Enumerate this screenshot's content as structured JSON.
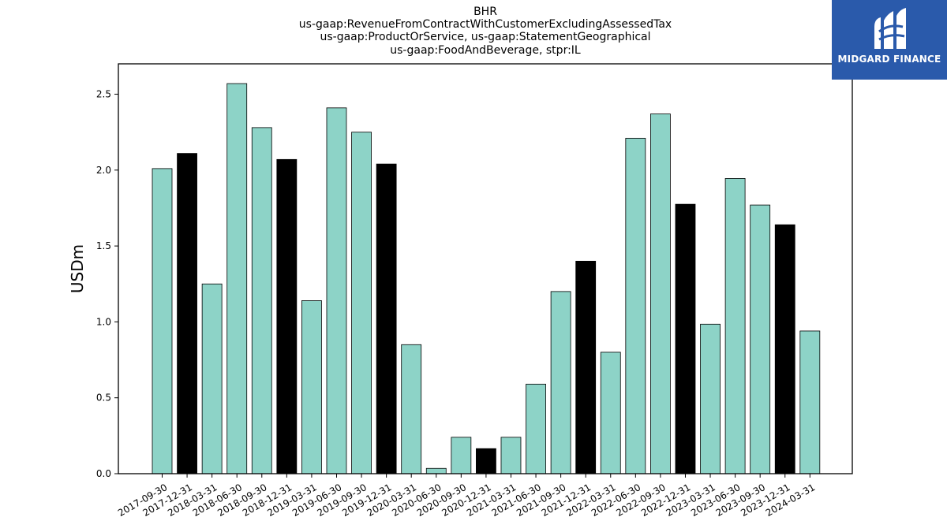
{
  "title_lines": [
    "BHR",
    "us-gaap:RevenueFromContractWithCustomerExcludingAssessedTax",
    "us-gaap:ProductOrService, us-gaap:StatementGeographical",
    "us-gaap:FoodAndBeverage, stpr:IL"
  ],
  "logo": {
    "text": "MIDGARD FINANCE",
    "icon": "midgard-logo-icon",
    "bg_color": "#2a5aab"
  },
  "chart_data": {
    "type": "bar",
    "ylabel": "USDm",
    "xlabel": "",
    "ylim": [
      0,
      2.7
    ],
    "yticks": [
      0.0,
      0.5,
      1.0,
      1.5,
      2.0,
      2.5
    ],
    "ytick_labels": [
      "0.0",
      "0.5",
      "1.0",
      "1.5",
      "2.0",
      "2.5"
    ],
    "grid": false,
    "colors": {
      "quarter": "#8dd3c7",
      "year_end": "#000000",
      "edge": "#000000"
    },
    "categories": [
      "2017-09-30",
      "2017-12-31",
      "2018-03-31",
      "2018-06-30",
      "2018-09-30",
      "2018-12-31",
      "2019-03-31",
      "2019-06-30",
      "2019-09-30",
      "2019-12-31",
      "2020-03-31",
      "2020-06-30",
      "2020-09-30",
      "2020-12-31",
      "2021-03-31",
      "2021-06-30",
      "2021-09-30",
      "2021-12-31",
      "2022-03-31",
      "2022-06-30",
      "2022-09-30",
      "2022-12-31",
      "2023-03-31",
      "2023-06-30",
      "2023-09-30",
      "2023-12-31",
      "2024-03-31"
    ],
    "values": [
      2.01,
      2.11,
      1.25,
      2.57,
      2.28,
      2.07,
      1.14,
      2.41,
      2.25,
      2.04,
      0.85,
      0.035,
      0.24,
      0.165,
      0.24,
      0.59,
      1.2,
      1.4,
      0.8,
      2.21,
      2.37,
      1.775,
      0.985,
      1.945,
      1.77,
      1.64,
      0.94
    ]
  }
}
